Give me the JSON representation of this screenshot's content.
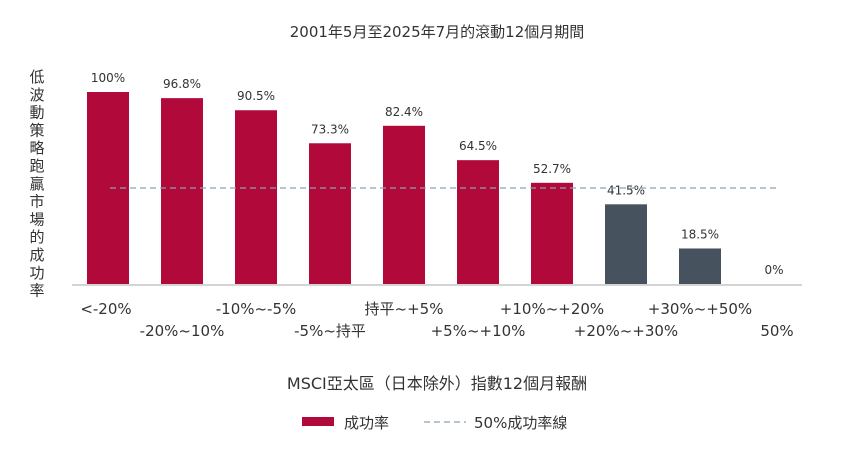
{
  "chart_data": {
    "type": "bar",
    "title": "2001年5月至2025年7月的滾動12個月期間",
    "ylabel": "低波動策略跑贏市場的成功率",
    "xlabel": "MSCI亞太區（日本除外）指數12個月報酬",
    "categories": [
      "<-20%",
      "-20%~10%",
      "-10%~-5%",
      "-5%~持平",
      "持平~+5%",
      "+5%~+10%",
      "+10%~+20%",
      "+20%~+30%",
      "+30%~+50%",
      "50%"
    ],
    "values": [
      100,
      96.8,
      90.5,
      73.3,
      82.4,
      64.5,
      52.7,
      41.5,
      18.5,
      0
    ],
    "data_labels": [
      "100%",
      "96.8%",
      "90.5%",
      "73.3%",
      "82.4%",
      "64.5%",
      "52.7%",
      "41.5%",
      "18.5%",
      "0%"
    ],
    "ylim": [
      0,
      100
    ],
    "reference_line": {
      "value": 50
    },
    "colors": {
      "above": "#b0093a",
      "below": "#46525d",
      "reference": "#8aa3b5",
      "axis": "#aaaaaa"
    },
    "legend": {
      "placement": "bottom",
      "bar_label": "成功率",
      "line_label": "50%成功率線"
    },
    "grid": false
  }
}
